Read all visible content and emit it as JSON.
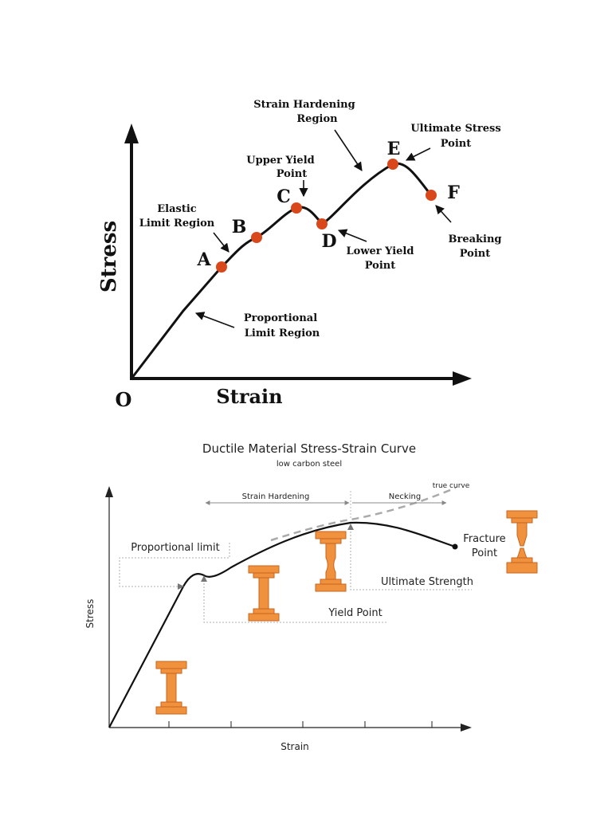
{
  "diagram1": {
    "y_axis_label": "Stress",
    "x_axis_label": "Strain",
    "origin_label": "O",
    "point_color": "#d9481a",
    "points": [
      {
        "label": "A",
        "name": "point-a"
      },
      {
        "label": "B",
        "name": "point-b"
      },
      {
        "label": "C",
        "name": "point-c"
      },
      {
        "label": "D",
        "name": "point-d"
      },
      {
        "label": "E",
        "name": "point-e"
      },
      {
        "label": "F",
        "name": "point-f"
      }
    ],
    "annotations": {
      "elastic_limit": [
        "Elastic",
        "Limit Region"
      ],
      "upper_yield": [
        "Upper Yield",
        "Point"
      ],
      "strain_hardening": [
        "Strain Hardening",
        "Region"
      ],
      "ultimate_stress": [
        "Ultimate Stress",
        "Point"
      ],
      "lower_yield": [
        "Lower Yield",
        "Point"
      ],
      "breaking": [
        "Breaking",
        "Point"
      ],
      "proportional": [
        "Proportional",
        "Limit Region"
      ]
    }
  },
  "diagram2": {
    "title": "Ductile Material Stress-Strain Curve",
    "subtitle": "low carbon steel",
    "y_axis_label": "Stress",
    "x_axis_label": "Strain",
    "specimen_color": "#f0913e",
    "labels": {
      "strain_hardening": "Strain Hardening",
      "necking": "Necking",
      "true_curve": "true curve",
      "proportional_limit": "Proportional limit",
      "ultimate_strength": "Ultimate Strength",
      "yield_point": "Yield Point",
      "fracture_point": [
        "Fracture",
        "Point"
      ]
    }
  }
}
